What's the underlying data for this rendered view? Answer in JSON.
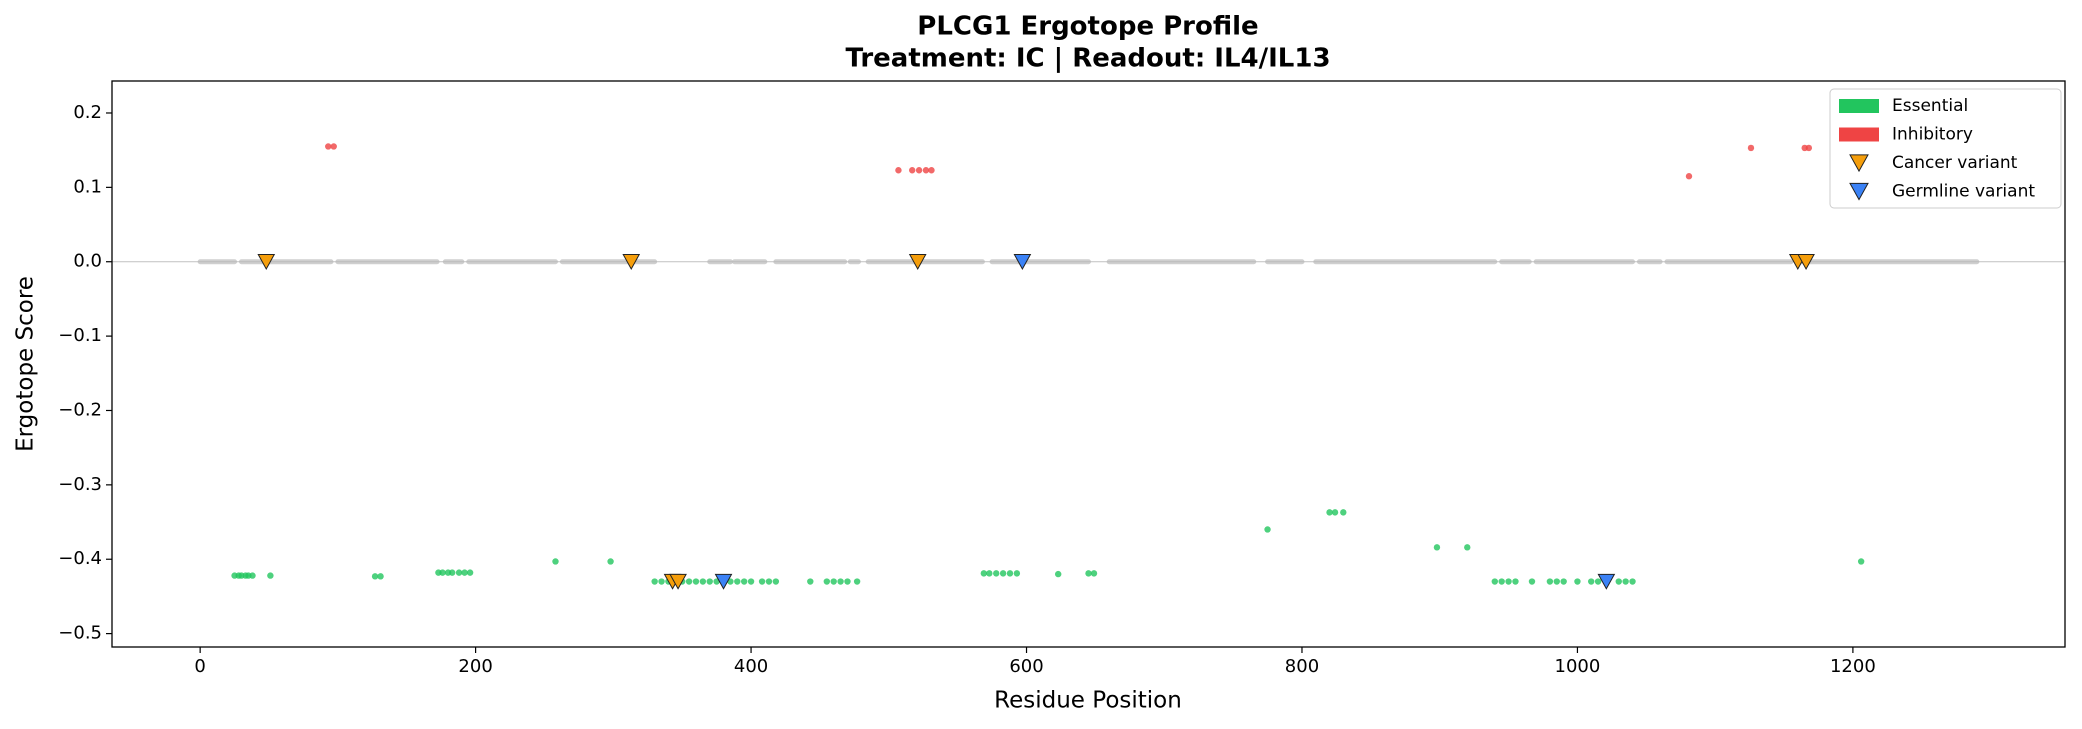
{
  "chart_data": {
    "type": "scatter",
    "title": "PLCG1 Ergotope Profile",
    "subtitle": "Treatment: IC | Readout: IL4/IL13",
    "x_label": "Residue Position",
    "y_label": "Ergotope Score",
    "xlim": [
      -64,
      1354
    ],
    "ylim": [
      -0.518,
      0.243
    ],
    "xticks": [
      0,
      200,
      400,
      600,
      800,
      1000,
      1200
    ],
    "yticks": [
      {
        "value": -0.5,
        "label": "−0.5"
      },
      {
        "value": -0.4,
        "label": "−0.4"
      },
      {
        "value": -0.3,
        "label": "−0.3"
      },
      {
        "value": -0.2,
        "label": "−0.2"
      },
      {
        "value": -0.1,
        "label": "−0.1"
      },
      {
        "value": 0,
        "label": "0.0"
      },
      0.1,
      0.2
    ],
    "reference_line": 0,
    "legend": "upper right",
    "series": [
      {
        "name": "Essential",
        "color": "#22c55e",
        "x": [
          25,
          28,
          30,
          33,
          35,
          38,
          51,
          127,
          131,
          173,
          176,
          180,
          183,
          188,
          192,
          196,
          258,
          298,
          330,
          335,
          340,
          350,
          355,
          360,
          365,
          370,
          375,
          385,
          390,
          395,
          400,
          408,
          413,
          418,
          443,
          455,
          460,
          465,
          470,
          477,
          569,
          573,
          578,
          583,
          588,
          593,
          623,
          645,
          649,
          775,
          820,
          824,
          830,
          898,
          920,
          940,
          945,
          950,
          955,
          967,
          980,
          985,
          990,
          1000,
          1010,
          1015,
          1030,
          1035,
          1040,
          1206
        ],
        "values": [
          -0.422,
          -0.422,
          -0.422,
          -0.422,
          -0.422,
          -0.422,
          -0.422,
          -0.423,
          -0.423,
          -0.418,
          -0.418,
          -0.418,
          -0.418,
          -0.418,
          -0.418,
          -0.418,
          -0.403,
          -0.403,
          -0.43,
          -0.43,
          -0.43,
          -0.43,
          -0.43,
          -0.43,
          -0.43,
          -0.43,
          -0.43,
          -0.43,
          -0.43,
          -0.43,
          -0.43,
          -0.43,
          -0.43,
          -0.43,
          -0.43,
          -0.43,
          -0.43,
          -0.43,
          -0.43,
          -0.43,
          -0.419,
          -0.419,
          -0.419,
          -0.419,
          -0.419,
          -0.419,
          -0.42,
          -0.419,
          -0.419,
          -0.36,
          -0.337,
          -0.337,
          -0.337,
          -0.384,
          -0.384,
          -0.43,
          -0.43,
          -0.43,
          -0.43,
          -0.43,
          -0.43,
          -0.43,
          -0.43,
          -0.43,
          -0.43,
          -0.43,
          -0.43,
          -0.43,
          -0.43,
          -0.403
        ]
      },
      {
        "name": "Inhibitory",
        "color": "#ef4444",
        "x": [
          93,
          97,
          507,
          517,
          522,
          527,
          531,
          1081,
          1126,
          1165,
          1168
        ],
        "values": [
          0.155,
          0.155,
          0.123,
          0.123,
          0.123,
          0.123,
          0.123,
          0.115,
          0.153,
          0.153,
          0.153
        ]
      }
    ],
    "neutral": {
      "color": "#bbbbbb",
      "x_start": [
        0,
        30,
        100,
        178,
        195,
        263,
        370,
        388,
        418,
        472,
        485,
        575,
        660,
        775,
        810,
        945,
        970,
        1045,
        1065,
        1160
      ],
      "x_end": [
        25,
        95,
        172,
        190,
        258,
        330,
        385,
        410,
        468,
        478,
        568,
        645,
        765,
        800,
        940,
        965,
        1040,
        1060,
        1155,
        1290
      ],
      "values": [
        0,
        0,
        0,
        0,
        0,
        0,
        0,
        0,
        0,
        0,
        0,
        0,
        0,
        0,
        0,
        0,
        0,
        0,
        0,
        0
      ]
    },
    "markers": [
      {
        "name": "Cancer variant",
        "color": "#f59e0b",
        "x": [
          48,
          313,
          521,
          1160,
          1166,
          343,
          347
        ],
        "values": [
          0,
          0,
          0,
          0,
          0,
          -0.43,
          -0.43
        ]
      },
      {
        "name": "Germline variant",
        "color": "#3b82f6",
        "x": [
          597,
          380,
          1021
        ],
        "values": [
          0,
          -0.43,
          -0.43
        ]
      }
    ]
  }
}
